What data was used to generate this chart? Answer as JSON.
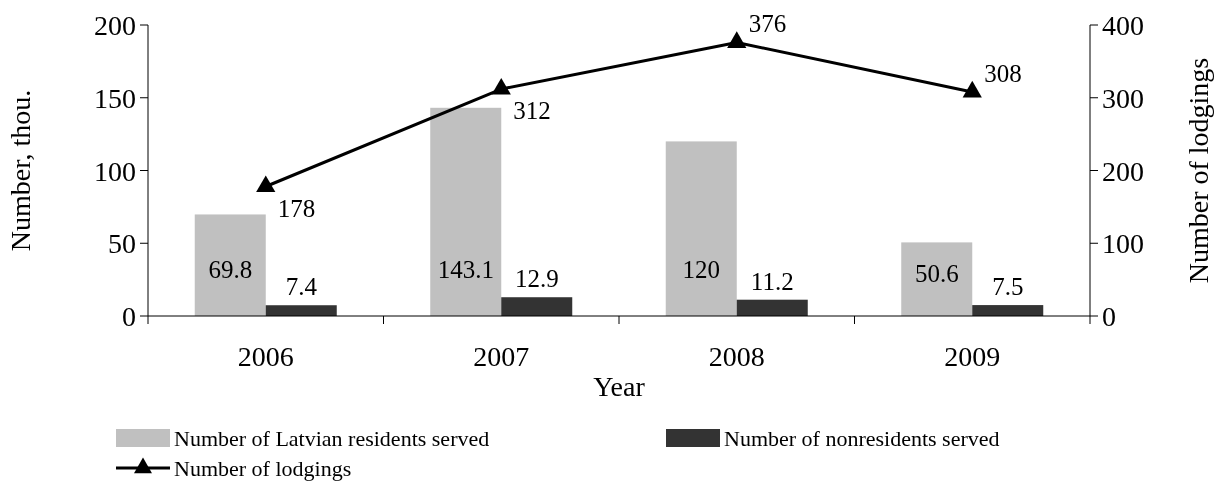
{
  "chart_data": {
    "type": "bar",
    "xlabel": "Year",
    "ylabel": "Number, thou.",
    "y2label": "Number of lodgings",
    "categories": [
      "2006",
      "2007",
      "2008",
      "2009"
    ],
    "series": [
      {
        "name": "Number of Latvian residents served",
        "color": "#c0c0c0",
        "values": [
          69.8,
          143.1,
          120,
          50.6
        ]
      },
      {
        "name": "Number of nonresidents served",
        "color": "#333333",
        "values": [
          7.4,
          12.9,
          11.2,
          7.5
        ]
      },
      {
        "name": "Number of lodgings",
        "type": "line",
        "axis": "y2",
        "color": "#000000",
        "marker": "triangle",
        "values": [
          178,
          312,
          376,
          308
        ]
      }
    ],
    "ylim": [
      0,
      200
    ],
    "yticks": [
      0,
      50,
      100,
      150,
      200
    ],
    "y2lim": [
      0,
      400
    ],
    "y2ticks": [
      0,
      100,
      200,
      300,
      400
    ],
    "data_labels": true,
    "grid": false,
    "legend": "bottom"
  }
}
